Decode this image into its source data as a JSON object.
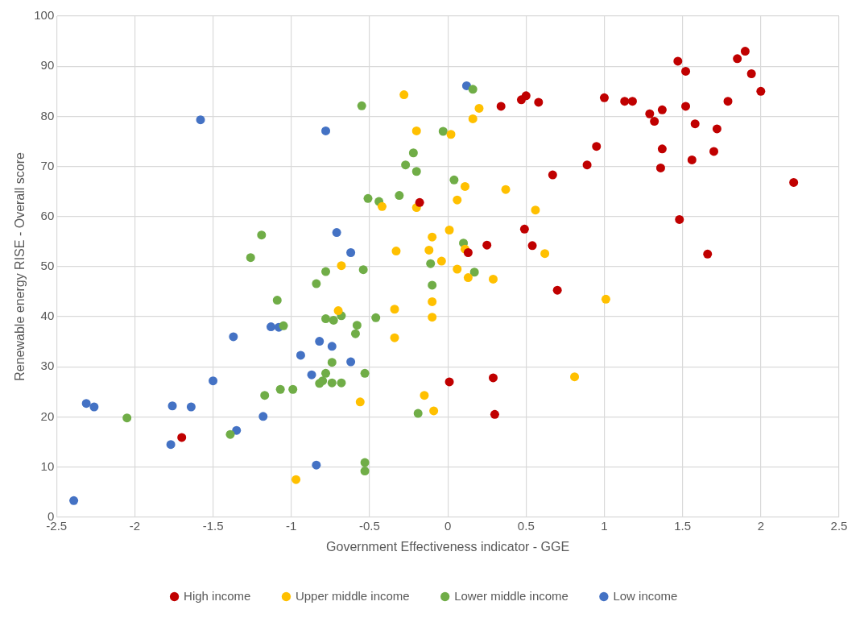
{
  "chart_data": {
    "type": "scatter",
    "xlabel": "Government Effectiveness indicator - GGE",
    "ylabel": "Renewable energy RISE - Overall score",
    "xlim": [
      -2.5,
      2.5
    ],
    "xticks": [
      -2.5,
      -2,
      -1.5,
      -1,
      -0.5,
      0,
      0.5,
      1,
      1.5,
      2,
      2.5
    ],
    "ylim": [
      0,
      100
    ],
    "yticks": [
      0,
      10,
      20,
      30,
      40,
      50,
      60,
      70,
      80,
      90,
      100
    ],
    "grid": true,
    "legend": "bottom",
    "marker": "circle",
    "series": [
      {
        "name": "High income",
        "color": "#c00000",
        "x": [
          1.9,
          1.85,
          1.47,
          1.52,
          1.94,
          2.0,
          1.52,
          1.79,
          1.0,
          1.13,
          1.18,
          0.5,
          0.47,
          0.58,
          0.34,
          1.29,
          1.32,
          1.37,
          1.58,
          1.72,
          0.95,
          1.37,
          1.7,
          0.89,
          1.36,
          1.56,
          0.67,
          2.21,
          -0.18,
          0.49,
          1.48,
          0.54,
          0.25,
          0.13,
          1.66,
          0.7,
          0.01,
          0.29,
          0.3,
          -1.7
        ],
        "values": [
          93,
          91.5,
          91,
          89,
          88.5,
          85,
          82,
          83,
          83.7,
          83,
          83,
          84.1,
          83.3,
          82.8,
          82,
          80.5,
          79,
          81.3,
          78.5,
          77.5,
          74,
          73.5,
          73,
          70.3,
          69.7,
          71.3,
          68.3,
          66.8,
          62.8,
          57.5,
          59.4,
          54.2,
          54.3,
          52.8,
          52.5,
          45.3,
          27,
          27.8,
          20.5,
          15.9
        ]
      },
      {
        "name": "Upper middle income",
        "color": "#ffc000",
        "x": [
          -0.28,
          0.2,
          0.16,
          -0.2,
          0.02,
          0.37,
          0.11,
          0.06,
          -0.42,
          -0.2,
          0.56,
          0.01,
          -0.1,
          -0.12,
          -0.33,
          0.11,
          0.62,
          -0.04,
          -0.68,
          0.06,
          0.13,
          0.29,
          -0.7,
          -0.34,
          -0.1,
          1.01,
          -0.1,
          -0.34,
          -0.15,
          0.81,
          -0.56,
          -0.09,
          -0.97
        ],
        "values": [
          84.3,
          81.6,
          79.5,
          77.1,
          76.4,
          65.4,
          66,
          63.3,
          62,
          61.8,
          61.3,
          57.3,
          55.9,
          53.3,
          53.1,
          53.5,
          52.6,
          51.1,
          50.2,
          49.5,
          47.8,
          47.5,
          41.2,
          41.5,
          43,
          43.5,
          39.9,
          35.8,
          24.3,
          28,
          23,
          21.2,
          7.5
        ]
      },
      {
        "name": "Lower middle income",
        "color": "#70ad47",
        "x": [
          0.16,
          -0.55,
          -0.03,
          -0.22,
          -0.27,
          -0.2,
          0.04,
          -0.51,
          -0.44,
          -0.31,
          -1.19,
          -1.26,
          0.1,
          -0.11,
          0.17,
          -0.54,
          -0.78,
          -0.84,
          -0.1,
          -1.09,
          -0.78,
          -0.73,
          -0.68,
          -0.46,
          -0.58,
          -1.05,
          -0.59,
          -0.74,
          -0.78,
          -0.53,
          -0.82,
          -0.8,
          -0.74,
          -0.68,
          -1.07,
          -0.99,
          -1.17,
          -2.05,
          -0.19,
          -1.39,
          -0.53,
          -0.53
        ],
        "values": [
          85.4,
          82.1,
          77,
          72.7,
          70.3,
          69,
          67.3,
          63.6,
          63,
          64.2,
          56.3,
          51.8,
          54.7,
          50.6,
          48.9,
          49.4,
          49,
          46.6,
          46.3,
          43.3,
          39.6,
          39.3,
          40.2,
          39.8,
          38.3,
          38.2,
          36.6,
          30.9,
          28.7,
          28.7,
          26.7,
          27.2,
          26.8,
          26.8,
          25.5,
          25.5,
          24.3,
          19.8,
          20.7,
          16.5,
          10.9,
          9.2
        ]
      },
      {
        "name": "Low income",
        "color": "#4472c4",
        "x": [
          0.12,
          -1.58,
          -0.78,
          -0.71,
          -0.62,
          -1.13,
          -1.08,
          -1.37,
          -0.82,
          -0.74,
          -0.94,
          -0.62,
          -0.87,
          -1.5,
          -2.31,
          -2.26,
          -1.76,
          -1.64,
          -1.18,
          -1.35,
          -1.77,
          -0.84,
          -2.39
        ],
        "values": [
          86.1,
          79.3,
          77.1,
          56.8,
          52.8,
          38,
          37.9,
          36,
          35.1,
          34.1,
          32.3,
          31,
          28.4,
          27.2,
          22.7,
          22,
          22.2,
          22,
          20.1,
          17.3,
          14.5,
          10.4,
          3.3
        ]
      }
    ]
  }
}
